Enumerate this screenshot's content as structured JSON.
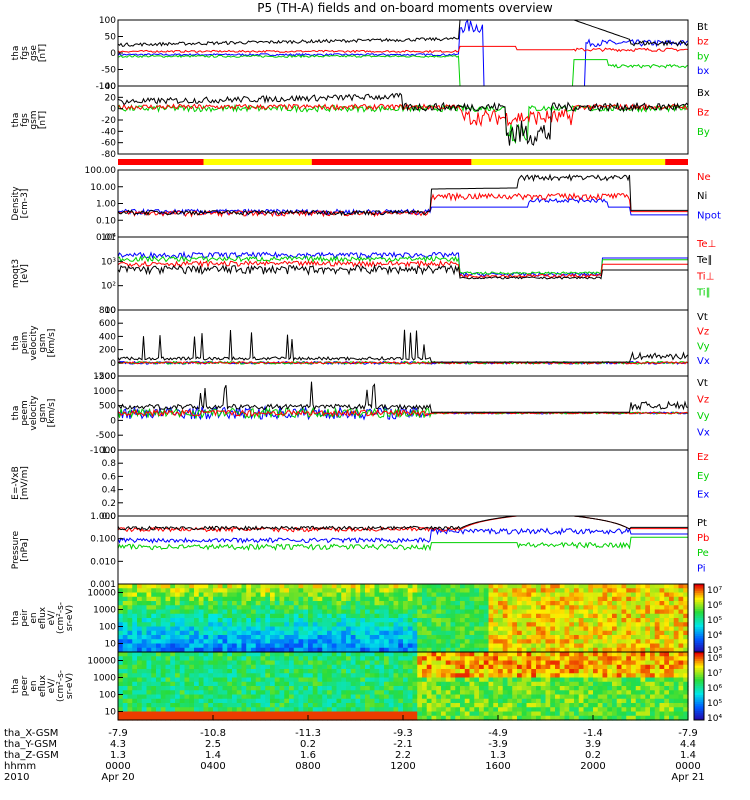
{
  "title": "P5 (TH-A) fields and on-board moments overview",
  "colors": {
    "black": "#000000",
    "red": "#ff0000",
    "green": "#00d000",
    "blue": "#0000ff",
    "yellow": "#ffff00"
  },
  "chart_data": [
    {
      "type": "line",
      "panel": "fgs_gse",
      "ylabel_lines": [
        "tha",
        "fgs",
        "gse",
        "[nT]"
      ],
      "yticks": [
        "100",
        "50",
        "0",
        "-50",
        "-100"
      ],
      "ylim": [
        -100,
        100
      ],
      "legend": [
        "Bt",
        "bz",
        "by",
        "bx"
      ],
      "legend_colors": [
        "#000000",
        "#ff0000",
        "#00d000",
        "#0000ff"
      ]
    },
    {
      "type": "line",
      "panel": "fgs_gsm",
      "ylabel_lines": [
        "tha",
        "fgs",
        "gsm",
        "[nT]"
      ],
      "yticks": [
        "40",
        "20",
        "0",
        "-20",
        "-40",
        "-60",
        "-80"
      ],
      "ylim": [
        -90,
        40
      ],
      "legend": [
        "Bx",
        "Bz",
        "By"
      ],
      "legend_colors": [
        "#000000",
        "#ff0000",
        "#00d000"
      ]
    },
    {
      "type": "line",
      "panel": "density",
      "ylabel_lines": [
        "Density",
        "[cm-3]"
      ],
      "yticks": [
        "100.00",
        "10.00",
        "1.00",
        "0.10",
        "0.01"
      ],
      "yscale": "log",
      "ylim": [
        0.01,
        300
      ],
      "legend": [
        "Ne",
        "Ni",
        "Npot"
      ],
      "legend_colors": [
        "#ff0000",
        "#000000",
        "#0000ff"
      ]
    },
    {
      "type": "line",
      "panel": "temperature",
      "ylabel_lines": [
        "moqt3",
        "[eV]"
      ],
      "yticks": [
        "10⁴",
        "10³",
        "10²",
        "10"
      ],
      "yscale": "log",
      "ylim": [
        10,
        30000
      ],
      "legend": [
        "Te⊥",
        "Te∥",
        "Ti⊥",
        "Ti∥"
      ],
      "legend_colors": [
        "#ff0000",
        "#000000",
        "#ff0000",
        "#00d000"
      ]
    },
    {
      "type": "line",
      "panel": "peim_velocity",
      "ylabel_lines": [
        "tha",
        "peim",
        "velocity",
        "gsm",
        "[km/s]"
      ],
      "yticks": [
        "800",
        "600",
        "400",
        "200",
        "0",
        "-200"
      ],
      "ylim": [
        -200,
        800
      ],
      "legend": [
        "Vt",
        "Vz",
        "Vy",
        "Vx"
      ],
      "legend_colors": [
        "#000000",
        "#ff0000",
        "#00d000",
        "#0000ff"
      ]
    },
    {
      "type": "line",
      "panel": "peem_velocity",
      "ylabel_lines": [
        "tha",
        "peem",
        "velocity",
        "gsm",
        "[km/s]"
      ],
      "yticks": [
        "1500",
        "1000",
        "500",
        "0",
        "-500",
        "-1000"
      ],
      "ylim": [
        -1500,
        1500
      ],
      "legend": [
        "Vt",
        "Vz",
        "Vy",
        "Vx"
      ],
      "legend_colors": [
        "#000000",
        "#ff0000",
        "#00d000",
        "#0000ff"
      ]
    },
    {
      "type": "line",
      "panel": "efield",
      "ylabel_lines": [
        "E=-VxB",
        "[mV/m]"
      ],
      "yticks": [
        "1.0",
        "0.8",
        "0.6",
        "0.4",
        "0.2",
        "0.0"
      ],
      "ylim": [
        0,
        1
      ],
      "legend": [
        "Ez",
        "Ey",
        "Ex"
      ],
      "legend_colors": [
        "#ff0000",
        "#00d000",
        "#0000ff"
      ]
    },
    {
      "type": "line",
      "panel": "pressure",
      "ylabel_lines": [
        "Pressure",
        "[nPa]"
      ],
      "yticks": [
        "1.000",
        "0.100",
        "0.010",
        "0.001"
      ],
      "yscale": "log",
      "ylim": [
        0.0005,
        3
      ],
      "legend": [
        "Pt",
        "Pb",
        "Pe",
        "Pi"
      ],
      "legend_colors": [
        "#000000",
        "#ff0000",
        "#00d000",
        "#0000ff"
      ]
    },
    {
      "type": "heatmap",
      "panel": "peir_eflux",
      "ylabel_lines": [
        "tha",
        "peir",
        "en",
        "eflux",
        "eV/",
        "(cm²-s-",
        "sr-eV)"
      ],
      "yticks": [
        "10000",
        "1000",
        "100",
        "10"
      ],
      "yscale": "log",
      "colorbar_ticks": [
        "10⁷",
        "10⁶",
        "10⁵",
        "10⁴",
        "10³"
      ]
    },
    {
      "type": "heatmap",
      "panel": "peer_eflux",
      "ylabel_lines": [
        "tha",
        "peer",
        "en",
        "eflux",
        "eV/",
        "(cm²-s-",
        "sr-eV)"
      ],
      "yticks": [
        "10000",
        "1000",
        "100",
        "10"
      ],
      "yscale": "log",
      "colorbar_ticks": [
        "10⁸",
        "10⁷",
        "10⁶",
        "10⁵",
        "10⁴"
      ]
    }
  ],
  "ephemeris": {
    "labels": [
      "tha_X-GSM",
      "tha_Y-GSM",
      "tha_Z-GSM",
      "hhmm",
      "2010"
    ],
    "columns": [
      [
        "-7.9",
        "4.3",
        "1.3",
        "0000",
        "Apr 20"
      ],
      [
        "-10.8",
        "2.5",
        "1.4",
        "0400",
        ""
      ],
      [
        "-11.3",
        "0.2",
        "1.6",
        "0800",
        ""
      ],
      [
        "-9.3",
        "-2.1",
        "2.2",
        "1200",
        ""
      ],
      [
        "-4.9",
        "-3.9",
        "1.3",
        "1600",
        ""
      ],
      [
        "-1.4",
        "3.9",
        "0.2",
        "2000",
        ""
      ],
      [
        "-7.9",
        "4.4",
        "1.4",
        "0000",
        "Apr 21"
      ]
    ]
  }
}
